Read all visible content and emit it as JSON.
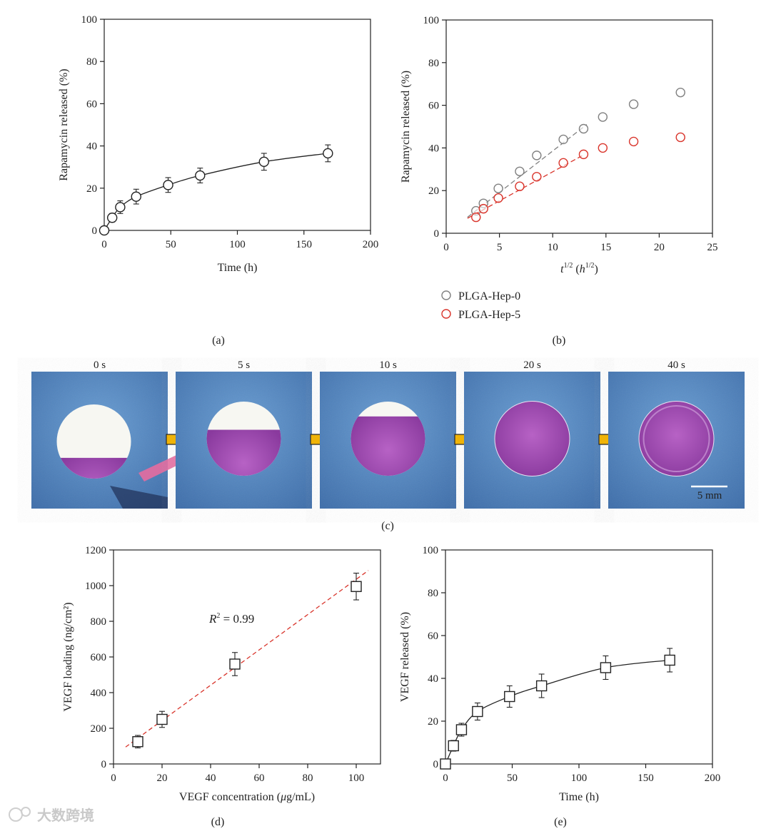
{
  "chart_data": [
    {
      "panel": "a",
      "type": "line",
      "caption": "(a)",
      "xlabel": "Time (h)",
      "ylabel": "Rapamycin released (%)",
      "xlim": [
        0,
        200
      ],
      "ylim": [
        0,
        100
      ],
      "xticks": [
        0,
        50,
        100,
        150,
        200
      ],
      "yticks": [
        0,
        20,
        40,
        60,
        80,
        100
      ],
      "marker": "circle",
      "series": [
        {
          "name": "Rapamycin",
          "x": [
            0,
            6,
            12,
            24,
            48,
            72,
            120,
            168
          ],
          "y": [
            0,
            6,
            11,
            16,
            21.5,
            26,
            32.5,
            36.5
          ],
          "err": [
            0,
            2,
            3,
            3.5,
            3.5,
            3.5,
            4,
            4
          ]
        }
      ]
    },
    {
      "panel": "b",
      "type": "scatter",
      "caption": "(b)",
      "xlabel_main": "t",
      "xlabel_sup": "1/2",
      "xlabel_unit": "h",
      "xlabel_unit_sup": "1/2",
      "ylabel": "Rapamycin released (%)",
      "xlim": [
        0,
        25
      ],
      "ylim": [
        0,
        100
      ],
      "xticks": [
        0,
        5,
        10,
        15,
        20,
        25
      ],
      "yticks": [
        0,
        20,
        40,
        60,
        80,
        100
      ],
      "series": [
        {
          "name": "PLGA-Hep-0",
          "color": "#808080",
          "x": [
            2.8,
            3.5,
            4.9,
            6.9,
            8.5,
            11.0,
            12.9,
            14.7,
            17.6,
            22.0
          ],
          "y": [
            10.5,
            14,
            21,
            29,
            36.5,
            44,
            49,
            54.5,
            60.5,
            66
          ],
          "fit": {
            "x": [
              2,
              13.2
            ],
            "y": [
              7.5,
              51
            ]
          }
        },
        {
          "name": "PLGA-Hep-5",
          "color": "#d9342b",
          "x": [
            2.8,
            3.5,
            4.9,
            6.9,
            8.5,
            11.0,
            12.9,
            14.7,
            17.6,
            22.0
          ],
          "y": [
            7.5,
            11.5,
            16.5,
            22,
            26.5,
            33,
            37,
            40,
            43,
            45
          ],
          "fit": {
            "x": [
              2,
              13
            ],
            "y": [
              7,
              37
            ]
          }
        }
      ]
    },
    {
      "panel": "d",
      "type": "scatter",
      "caption": "(d)",
      "xlabel_pre": "VEGF concentration (",
      "xlabel_mu": "μ",
      "xlabel_post": "g/mL)",
      "ylabel": "VEGF loading (ng/cm²)",
      "xlim": [
        0,
        110
      ],
      "ylim": [
        0,
        1200
      ],
      "xticks": [
        0,
        20,
        40,
        60,
        80,
        100
      ],
      "yticks": [
        0,
        200,
        400,
        600,
        800,
        1000,
        1200
      ],
      "marker": "square",
      "annotation_r": "R",
      "annotation_sup": "2",
      "annotation_val": " = 0.99",
      "fit_color": "#d9342b",
      "fit": {
        "x": [
          5,
          105
        ],
        "y": [
          95,
          1085
        ]
      },
      "x": [
        10,
        20,
        50,
        100
      ],
      "y": [
        125,
        250,
        560,
        995
      ],
      "err": [
        35,
        45,
        65,
        75
      ]
    },
    {
      "panel": "e",
      "type": "line",
      "caption": "(e)",
      "xlabel": "Time (h)",
      "ylabel": "VEGF released (%)",
      "xlim": [
        0,
        200
      ],
      "ylim": [
        0,
        100
      ],
      "xticks": [
        0,
        50,
        100,
        150,
        200
      ],
      "yticks": [
        0,
        20,
        40,
        60,
        80,
        100
      ],
      "marker": "square",
      "series": [
        {
          "name": "VEGF",
          "x": [
            0,
            6,
            12,
            24,
            48,
            72,
            120,
            168
          ],
          "y": [
            0,
            8.5,
            16,
            24.5,
            31.5,
            36.5,
            45,
            48.5
          ],
          "err": [
            0,
            2.5,
            3,
            4,
            5,
            5.5,
            5.5,
            5.5
          ]
        }
      ]
    }
  ],
  "panel_c": {
    "caption": "(c)",
    "frames": [
      {
        "label": "0 s"
      },
      {
        "label": "5 s"
      },
      {
        "label": "10 s"
      },
      {
        "label": "20 s"
      },
      {
        "label": "40 s"
      }
    ],
    "scalebar_label": "5 mm"
  },
  "watermark": "大数跨境",
  "colors": {
    "axis": "#222222",
    "tile_bg": "#4f85bf",
    "tile_dark": "#2d5a95",
    "gel": "#a34bb2",
    "arrow": "#f2b300",
    "white_disc": "#f7f7f2"
  }
}
